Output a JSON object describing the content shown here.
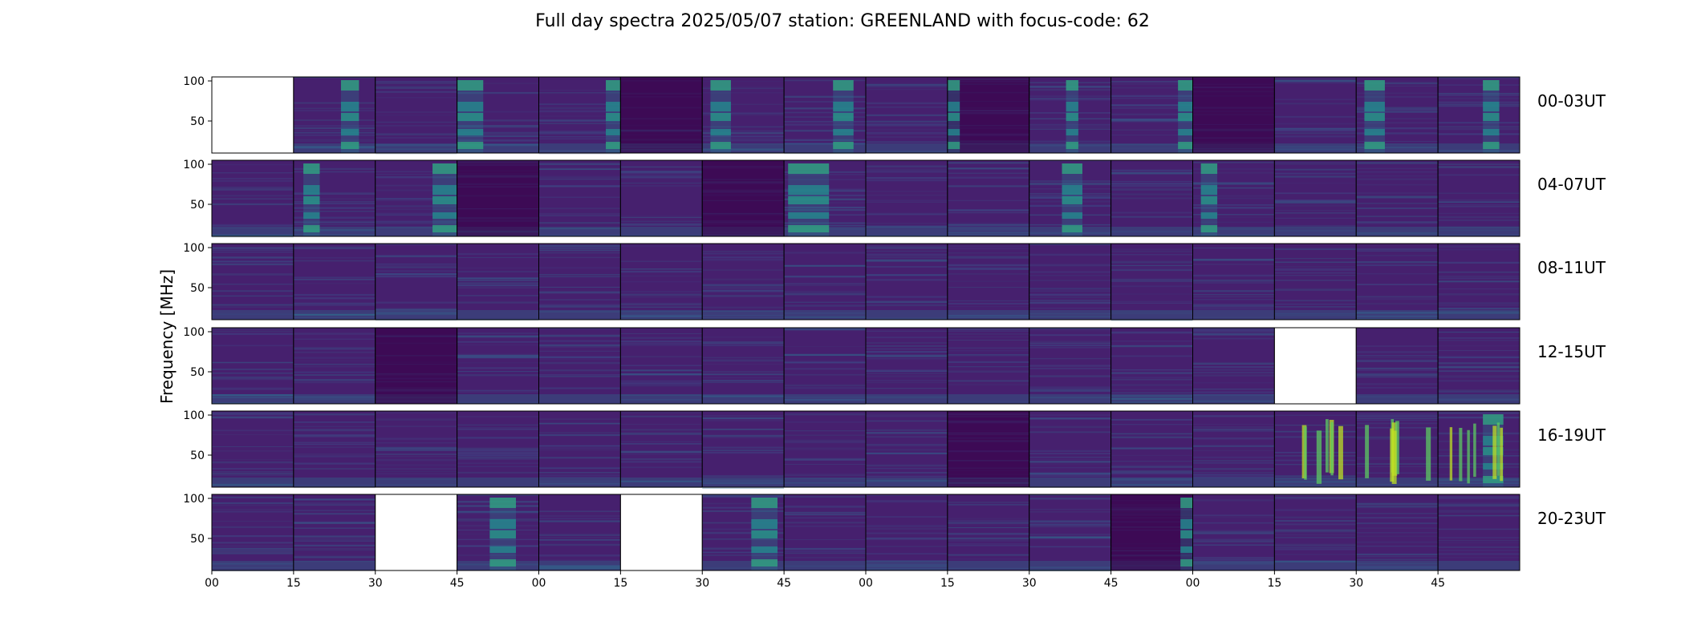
{
  "chart_data": {
    "type": "heatmap",
    "title": "Full day spectra 2025/05/07 station: GREENLAND with focus-code: 62",
    "ylabel": "Frequency [MHz]",
    "xlabel": "",
    "yticks": [
      "50",
      "100"
    ],
    "ylim": [
      10,
      105
    ],
    "xticks": [
      "00",
      "15",
      "30",
      "45",
      "00",
      "15",
      "30",
      "45",
      "00",
      "15",
      "30",
      "45",
      "00",
      "15",
      "30",
      "45"
    ],
    "colormap": "viridis",
    "panel_minutes": 15,
    "rows": [
      {
        "label": "00-03UT",
        "missing": [
          0
        ],
        "bursts": [
          {
            "p": 1,
            "s": 0.58,
            "e": 0.8
          },
          {
            "p": 3,
            "s": 0.0,
            "e": 0.32
          },
          {
            "p": 4,
            "s": 0.82,
            "e": 1.0
          },
          {
            "p": 6,
            "s": 0.1,
            "e": 0.35
          },
          {
            "p": 7,
            "s": 0.6,
            "e": 0.85
          },
          {
            "p": 9,
            "s": 0.0,
            "e": 0.15
          },
          {
            "p": 10,
            "s": 0.45,
            "e": 0.6
          },
          {
            "p": 11,
            "s": 0.82,
            "e": 1.0
          },
          {
            "p": 14,
            "s": 0.1,
            "e": 0.35
          },
          {
            "p": 15,
            "s": 0.55,
            "e": 0.75
          }
        ],
        "dark": [
          5,
          9,
          12
        ]
      },
      {
        "label": "04-07UT",
        "missing": [],
        "bursts": [
          {
            "p": 1,
            "s": 0.12,
            "e": 0.32
          },
          {
            "p": 2,
            "s": 0.7,
            "e": 1.0
          },
          {
            "p": 7,
            "s": 0.05,
            "e": 0.55
          },
          {
            "p": 10,
            "s": 0.4,
            "e": 0.65
          },
          {
            "p": 12,
            "s": 0.1,
            "e": 0.3
          }
        ],
        "dark": [
          3,
          6
        ]
      },
      {
        "label": "08-11UT",
        "missing": [],
        "bursts": [],
        "dark": []
      },
      {
        "label": "12-15UT",
        "missing": [
          13
        ],
        "bursts": [],
        "dark": [
          2
        ]
      },
      {
        "label": "16-19UT",
        "missing": [],
        "bursts": [
          {
            "p": 15,
            "s": 0.55,
            "e": 0.8
          }
        ],
        "spiky": [
          13,
          14,
          15
        ],
        "dark": [
          9
        ]
      },
      {
        "label": "20-23UT",
        "missing": [
          2,
          5
        ],
        "bursts": [
          {
            "p": 3,
            "s": 0.4,
            "e": 0.72
          },
          {
            "p": 6,
            "s": 0.6,
            "e": 0.92
          },
          {
            "p": 11,
            "s": 0.85,
            "e": 1.0
          }
        ],
        "dark": [
          11
        ]
      }
    ]
  }
}
